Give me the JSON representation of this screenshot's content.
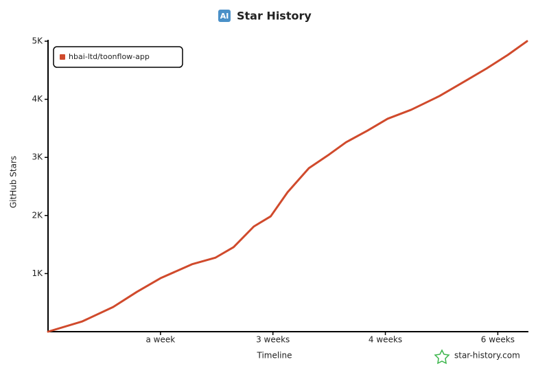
{
  "chart_data": {
    "type": "line",
    "title": "Star History",
    "logo": "AI",
    "xlabel": "Timeline",
    "ylabel": "GitHub Stars",
    "watermark": "star-history.com",
    "legend": "top-left",
    "xlim": [
      0,
      42.6
    ],
    "xticks": [
      {
        "value": 10,
        "label": "a week"
      },
      {
        "value": 20,
        "label": "3 weeks"
      },
      {
        "value": 30,
        "label": "4 weeks"
      },
      {
        "value": 40,
        "label": "6 weeks"
      }
    ],
    "ylim": [
      0,
      5000
    ],
    "yticks": [
      {
        "value": 1000,
        "label": "1K"
      },
      {
        "value": 2000,
        "label": "2K"
      },
      {
        "value": 3000,
        "label": "3K"
      },
      {
        "value": 4000,
        "label": "4K"
      },
      {
        "value": 5000,
        "label": "5K"
      }
    ],
    "x": [
      0,
      3.05,
      5.8,
      7.9,
      10,
      12.8,
      14.9,
      16.5,
      18.3,
      19.8,
      21.3,
      23.2,
      25,
      26.5,
      28.4,
      30.2,
      32.3,
      34.8,
      37.2,
      39,
      40.9,
      42.6
    ],
    "series": [
      {
        "name": "hbai-ltd/toonflow-app",
        "color": "#d04a2c",
        "values": [
          0,
          177,
          425,
          685,
          920,
          1160,
          1275,
          1455,
          1810,
          1985,
          2400,
          2815,
          3050,
          3260,
          3460,
          3665,
          3820,
          4055,
          4325,
          4530,
          4765,
          5000
        ]
      }
    ]
  }
}
